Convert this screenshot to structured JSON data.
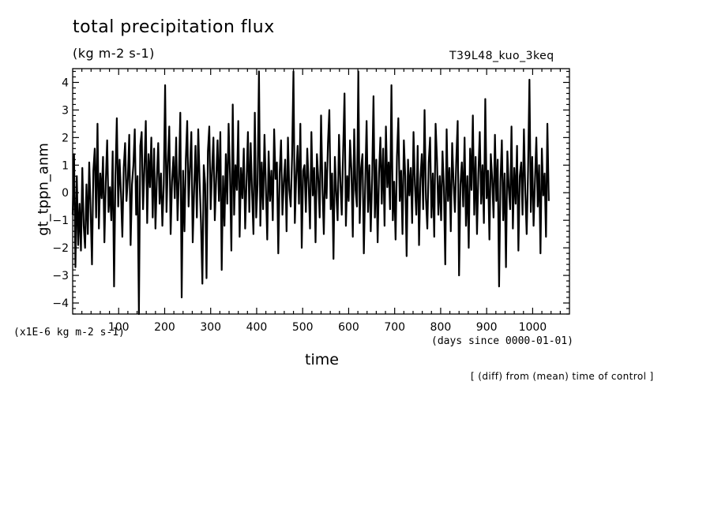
{
  "chart_data": {
    "type": "line",
    "title": "total precipitation flux",
    "units": "(kg m-2 s-1)",
    "run_label": "T39L48_kuo_3keq",
    "ylabel": "gt_tppn_anm",
    "xlabel": "time",
    "x_units": "(days since 0000-01-01)",
    "y_scale_note": "(x1E-6 kg m-2 s-1)",
    "footnote": "[ (diff) from (mean) time of control ]",
    "xlim": [
      0,
      1080
    ],
    "ylim": [
      -4.4,
      4.5
    ],
    "xticks_major": [
      100,
      200,
      300,
      400,
      500,
      600,
      700,
      800,
      900,
      1000
    ],
    "yticks_major": [
      -4,
      -3,
      -2,
      -1,
      0,
      1,
      2,
      3,
      4
    ],
    "grid": false,
    "legend": "none",
    "line_color": "#000000",
    "x_step_days": 3,
    "series": [
      {
        "values": [
          -0.8,
          1.4,
          -2.7,
          0.6,
          -1.9,
          -0.4,
          -2.1,
          0.9,
          -1.2,
          -2.0,
          0.3,
          -1.5,
          1.1,
          -0.6,
          -2.6,
          0.8,
          1.6,
          -0.9,
          2.5,
          -1.3,
          0.7,
          -0.2,
          1.3,
          -1.8,
          0.4,
          1.9,
          -0.7,
          0.2,
          -1.0,
          1.5,
          -3.4,
          0.6,
          2.7,
          -0.5,
          1.2,
          0.0,
          -1.6,
          0.9,
          1.8,
          -0.3,
          0.5,
          2.1,
          -1.9,
          0.3,
          1.0,
          2.3,
          -0.8,
          0.6,
          -4.4,
          1.7,
          2.2,
          -0.6,
          0.9,
          2.6,
          -1.1,
          1.4,
          0.2,
          2.0,
          -0.9,
          1.6,
          -1.3,
          0.5,
          1.8,
          -0.4,
          0.7,
          -1.2,
          0.3,
          3.9,
          -0.7,
          1.1,
          2.4,
          -1.5,
          0.4,
          1.3,
          -0.2,
          2.0,
          -1.0,
          0.6,
          2.9,
          -3.8,
          0.8,
          -1.4,
          1.2,
          2.6,
          -0.5,
          0.9,
          2.2,
          -1.8,
          0.1,
          1.7,
          -0.9,
          2.3,
          0.4,
          -1.1,
          -3.3,
          1.0,
          0.3,
          -3.1,
          1.5,
          2.4,
          -0.6,
          0.8,
          2.0,
          -1.0,
          0.5,
          1.9,
          -0.3,
          2.2,
          -2.8,
          0.6,
          -1.2,
          1.4,
          -0.4,
          2.5,
          0.7,
          -2.1,
          3.2,
          -0.8,
          1.0,
          0.1,
          2.6,
          -1.6,
          0.9,
          -0.2,
          1.6,
          -1.3,
          0.4,
          2.2,
          -0.7,
          1.8,
          0.0,
          -1.5,
          2.9,
          -0.9,
          0.3,
          4.4,
          -1.2,
          1.1,
          -0.6,
          2.1,
          0.2,
          -1.7,
          1.5,
          -0.3,
          0.8,
          -1.0,
          2.3,
          0.5,
          1.1,
          -2.2,
          0.7,
          1.9,
          -0.8,
          0.4,
          1.2,
          -1.4,
          2.0,
          0.1,
          -0.5,
          1.3,
          4.4,
          -1.1,
          0.6,
          1.7,
          -0.4,
          2.5,
          -2.0,
          0.8,
          1.0,
          -0.7,
          1.6,
          0.3,
          -1.3,
          2.2,
          -0.1,
          0.9,
          -1.8,
          1.4,
          0.5,
          -0.9,
          2.8,
          0.2,
          -1.5,
          1.1,
          -0.2,
          1.8,
          3.0,
          -0.6,
          0.7,
          -2.4,
          1.3,
          0.0,
          -1.0,
          2.1,
          0.4,
          -0.8,
          1.5,
          3.6,
          -1.2,
          0.6,
          -0.3,
          1.9,
          0.8,
          -1.6,
          2.3,
          0.1,
          -0.5,
          4.4,
          -1.1,
          0.9,
          1.4,
          -2.2,
          0.3,
          2.6,
          -0.7,
          1.0,
          -1.4,
          0.5,
          3.5,
          -0.9,
          1.2,
          -1.8,
          0.7,
          2.0,
          -0.4,
          1.6,
          -1.2,
          2.4,
          0.2,
          1.1,
          -0.6,
          3.9,
          -1.0,
          0.4,
          -1.7,
          1.3,
          2.7,
          -0.3,
          0.8,
          -1.5,
          1.9,
          0.6,
          -2.3,
          1.2,
          -0.1,
          0.9,
          -1.1,
          2.2,
          0.3,
          -0.8,
          1.7,
          -1.9,
          0.5,
          1.4,
          -0.6,
          3.0,
          -0.2,
          -1.3,
          1.1,
          2.0,
          -0.9,
          0.7,
          -1.6,
          2.5,
          1.2,
          -0.8,
          0.6,
          -1.0,
          1.5,
          0.2,
          -2.6,
          2.3,
          -0.3,
          0.9,
          -1.4,
          1.8,
          0.4,
          -0.7,
          1.2,
          2.6,
          -3.0,
          0.3,
          1.1,
          -0.5,
          2.0,
          -1.2,
          0.6,
          -2.0,
          1.6,
          0.1,
          2.8,
          -0.8,
          1.3,
          -1.5,
          0.7,
          2.2,
          -0.4,
          1.0,
          -1.1,
          3.4,
          -0.2,
          0.8,
          -1.7,
          1.4,
          0.5,
          -0.9,
          2.1,
          -0.3,
          1.2,
          -3.4,
          0.4,
          1.9,
          -1.0,
          0.7,
          -2.7,
          1.5,
          0.2,
          -0.6,
          2.4,
          -1.3,
          0.9,
          -0.4,
          1.7,
          -2.1,
          0.6,
          1.1,
          -0.8,
          2.3,
          0.0,
          -1.5,
          0.8,
          4.1,
          -0.7,
          1.3,
          -1.2,
          0.4,
          2.0,
          -0.5,
          1.0,
          -2.2,
          1.6,
          -0.1,
          0.7,
          -1.6,
          2.5,
          -0.3
        ]
      }
    ]
  }
}
